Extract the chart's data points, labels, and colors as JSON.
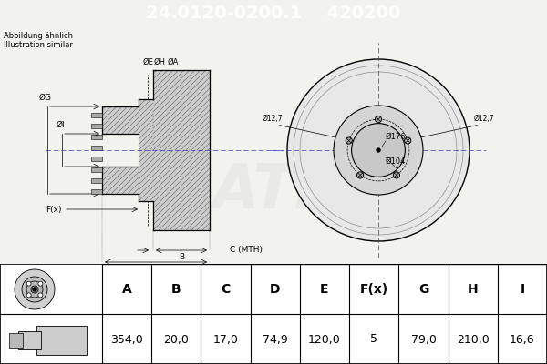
{
  "title_part1": "24.0120-0200.1",
  "title_part2": "420200",
  "title_bg": "#0000ee",
  "title_fg": "#ffffff",
  "subtitle1": "Abbildung ähnlich",
  "subtitle2": "Illustration similar",
  "table_headers": [
    "A",
    "B",
    "C",
    "D",
    "E",
    "F(x)",
    "G",
    "H",
    "I"
  ],
  "table_values": [
    "354,0",
    "20,0",
    "17,0",
    "74,9",
    "120,0",
    "5",
    "79,0",
    "210,0",
    "16,6"
  ],
  "bg_color": "#f2f2ee",
  "table_bg": "#ffffff",
  "hatch_color": "#555555",
  "dim_line_color": "#000000",
  "center_line_color": "#3333cc",
  "front_labels": [
    "Ø176",
    "Ø104",
    "Ø12,7",
    "Ø12,7"
  ]
}
